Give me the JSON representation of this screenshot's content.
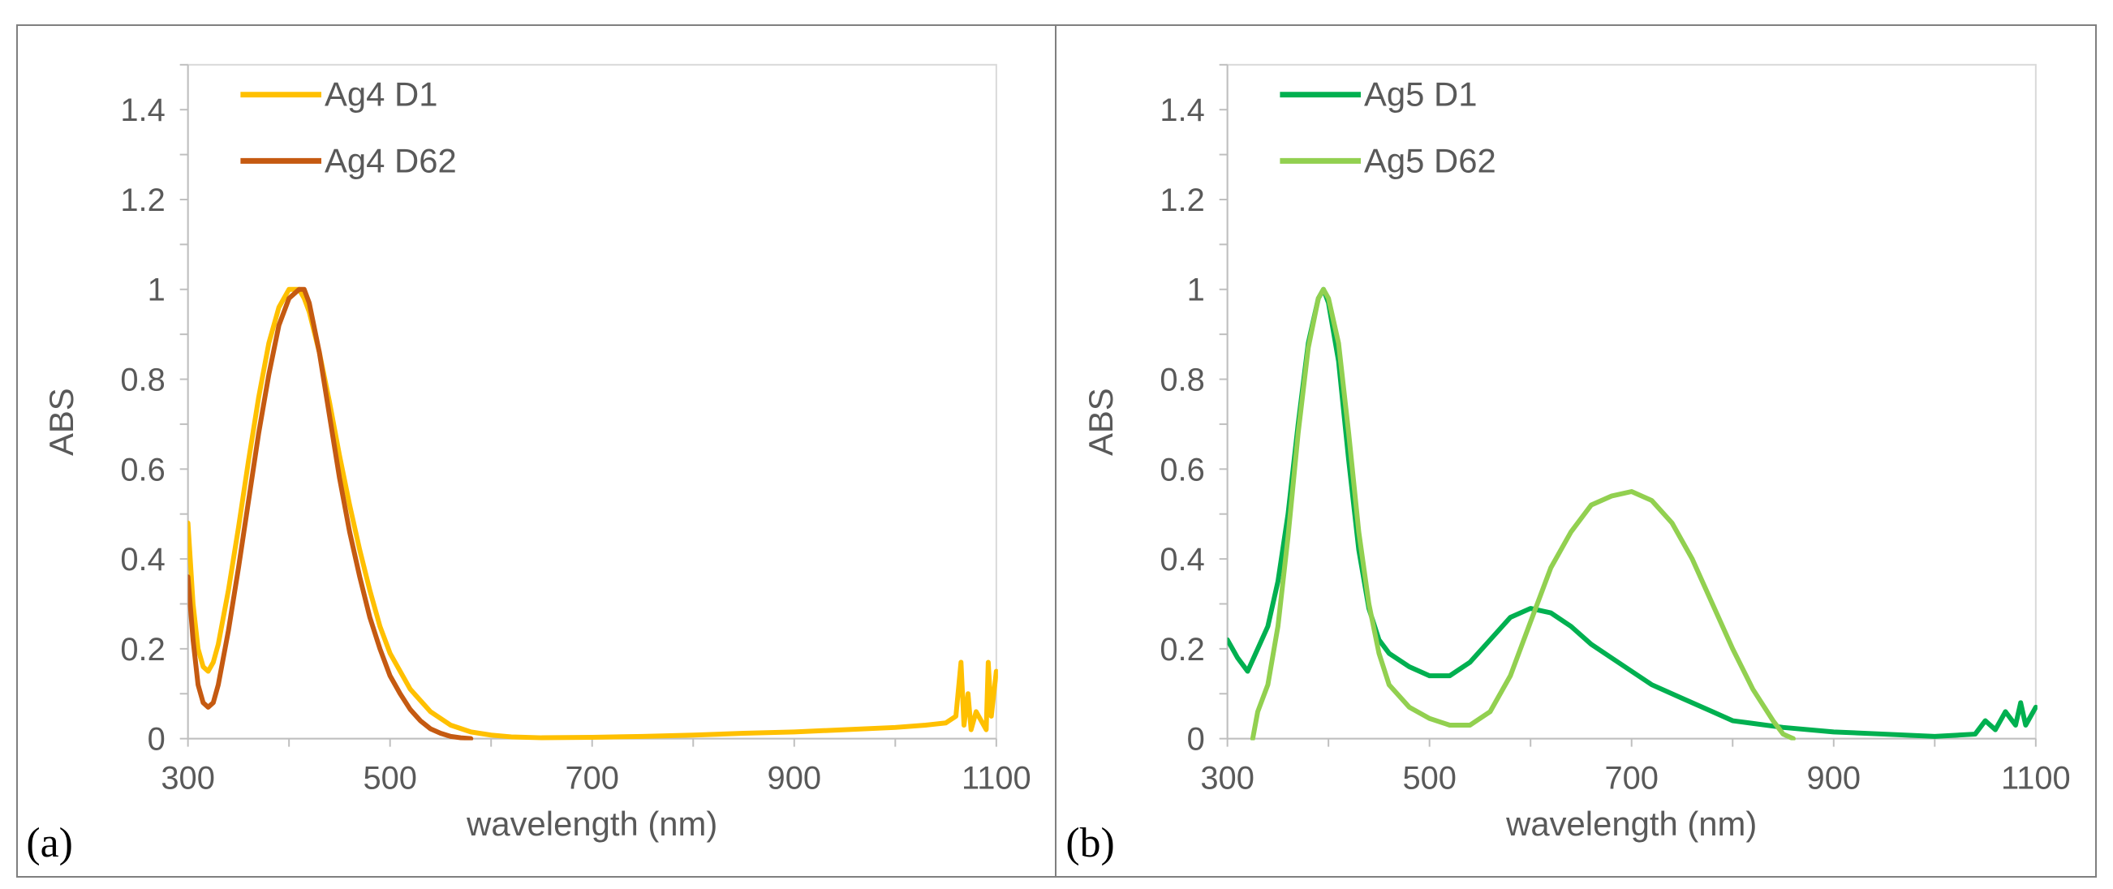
{
  "chart_data": [
    {
      "type": "line",
      "panel_label": "(a)",
      "xlabel": "wavelength (nm)",
      "ylabel": "ABS",
      "xlim": [
        300,
        1100
      ],
      "ylim": [
        0,
        1.5
      ],
      "xticks": [
        300,
        500,
        700,
        900,
        1100
      ],
      "yticks": [
        0,
        0.2,
        0.4,
        0.6,
        0.8,
        1,
        1.2,
        1.4
      ],
      "ytick_labels": [
        "0",
        "0.2",
        "0.4",
        "0.6",
        "0.8",
        "1",
        "1.2",
        "1.4"
      ],
      "legend_position": "top-left",
      "series": [
        {
          "name": "Ag4 D1",
          "color": "#FFC000",
          "x": [
            300,
            305,
            310,
            315,
            320,
            325,
            330,
            340,
            350,
            360,
            370,
            380,
            390,
            400,
            405,
            410,
            415,
            420,
            430,
            440,
            450,
            460,
            470,
            480,
            490,
            500,
            520,
            540,
            560,
            580,
            600,
            620,
            650,
            700,
            750,
            800,
            850,
            900,
            950,
            1000,
            1030,
            1050,
            1060,
            1065,
            1068,
            1072,
            1075,
            1080,
            1085,
            1090,
            1092,
            1095,
            1100
          ],
          "y": [
            0.48,
            0.3,
            0.2,
            0.16,
            0.15,
            0.17,
            0.21,
            0.33,
            0.47,
            0.62,
            0.76,
            0.88,
            0.96,
            1.0,
            1.0,
            1.0,
            0.98,
            0.95,
            0.86,
            0.75,
            0.63,
            0.52,
            0.42,
            0.33,
            0.25,
            0.19,
            0.11,
            0.06,
            0.03,
            0.015,
            0.008,
            0.004,
            0.002,
            0.003,
            0.005,
            0.008,
            0.012,
            0.015,
            0.02,
            0.025,
            0.03,
            0.035,
            0.05,
            0.17,
            0.03,
            0.1,
            0.02,
            0.06,
            0.04,
            0.02,
            0.17,
            0.05,
            0.15
          ]
        },
        {
          "name": "Ag4 D62",
          "color": "#C55A11",
          "x": [
            300,
            305,
            310,
            315,
            320,
            325,
            330,
            340,
            350,
            360,
            370,
            380,
            390,
            400,
            410,
            415,
            420,
            430,
            440,
            450,
            460,
            470,
            480,
            490,
            500,
            510,
            520,
            530,
            540,
            550,
            560,
            570,
            580
          ],
          "y": [
            0.36,
            0.22,
            0.12,
            0.08,
            0.07,
            0.08,
            0.12,
            0.24,
            0.38,
            0.53,
            0.68,
            0.81,
            0.92,
            0.98,
            1.0,
            1.0,
            0.97,
            0.86,
            0.72,
            0.58,
            0.46,
            0.36,
            0.27,
            0.2,
            0.14,
            0.1,
            0.065,
            0.04,
            0.022,
            0.012,
            0.005,
            0.002,
            0.0
          ]
        }
      ]
    },
    {
      "type": "line",
      "panel_label": "(b)",
      "xlabel": "wavelength (nm)",
      "ylabel": "ABS",
      "xlim": [
        300,
        1100
      ],
      "ylim": [
        0,
        1.5
      ],
      "xticks": [
        300,
        500,
        700,
        900,
        1100
      ],
      "yticks": [
        0,
        0.2,
        0.4,
        0.6,
        0.8,
        1,
        1.2,
        1.4
      ],
      "ytick_labels": [
        "0",
        "0.2",
        "0.4",
        "0.6",
        "0.8",
        "1",
        "1.2",
        "1.4"
      ],
      "legend_position": "top-left",
      "series": [
        {
          "name": "Ag5 D1",
          "color": "#00B050",
          "x": [
            300,
            310,
            320,
            330,
            340,
            350,
            360,
            370,
            380,
            390,
            395,
            400,
            410,
            420,
            430,
            440,
            450,
            460,
            480,
            500,
            520,
            540,
            560,
            580,
            600,
            620,
            640,
            660,
            680,
            700,
            720,
            750,
            780,
            800,
            850,
            900,
            950,
            1000,
            1040,
            1050,
            1060,
            1070,
            1080,
            1085,
            1090,
            1100
          ],
          "y": [
            0.22,
            0.18,
            0.15,
            0.2,
            0.25,
            0.35,
            0.5,
            0.7,
            0.88,
            0.98,
            1.0,
            0.97,
            0.84,
            0.62,
            0.42,
            0.29,
            0.22,
            0.19,
            0.16,
            0.14,
            0.14,
            0.17,
            0.22,
            0.27,
            0.29,
            0.28,
            0.25,
            0.21,
            0.18,
            0.15,
            0.12,
            0.09,
            0.06,
            0.04,
            0.025,
            0.015,
            0.01,
            0.005,
            0.01,
            0.04,
            0.02,
            0.06,
            0.03,
            0.08,
            0.03,
            0.07
          ]
        },
        {
          "name": "Ag5 D62",
          "color": "#92D050",
          "x": [
            325,
            330,
            340,
            350,
            360,
            370,
            380,
            390,
            395,
            400,
            410,
            420,
            430,
            440,
            450,
            460,
            480,
            500,
            520,
            540,
            560,
            580,
            600,
            620,
            640,
            660,
            680,
            700,
            720,
            740,
            760,
            780,
            800,
            820,
            840,
            850,
            860
          ],
          "y": [
            0.0,
            0.06,
            0.12,
            0.25,
            0.45,
            0.68,
            0.87,
            0.98,
            1.0,
            0.98,
            0.88,
            0.68,
            0.46,
            0.3,
            0.19,
            0.12,
            0.07,
            0.045,
            0.03,
            0.03,
            0.06,
            0.14,
            0.26,
            0.38,
            0.46,
            0.52,
            0.54,
            0.55,
            0.53,
            0.48,
            0.4,
            0.3,
            0.2,
            0.11,
            0.04,
            0.01,
            0.0
          ]
        }
      ]
    }
  ]
}
